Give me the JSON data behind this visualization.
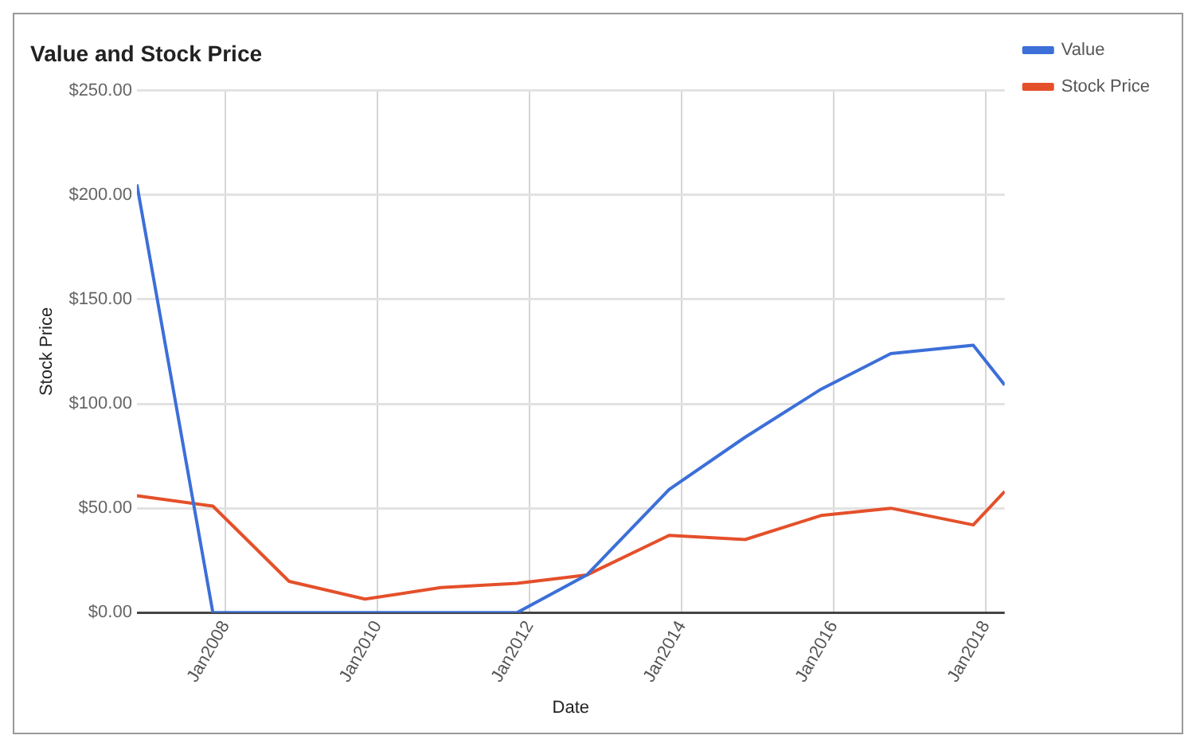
{
  "chart_data": {
    "type": "line",
    "title": "Value and Stock Price",
    "xlabel": "Date",
    "ylabel": "Stock Price",
    "x": [
      "2006-11",
      "2007-11",
      "2008-11",
      "2009-11",
      "2010-11",
      "2011-11",
      "2012-10",
      "2013-11",
      "2014-11",
      "2015-11",
      "2016-10",
      "2017-11",
      "2018-04"
    ],
    "series": [
      {
        "name": "Value",
        "color": "#3c6fd8",
        "values": [
          205,
          0,
          0,
          0,
          0,
          0,
          18,
          59,
          84,
          107,
          124,
          128,
          109
        ]
      },
      {
        "name": "Stock Price",
        "color": "#e4502a",
        "values": [
          56,
          51,
          15,
          6.5,
          12,
          14,
          18,
          37,
          35,
          46.5,
          50,
          42,
          58
        ]
      }
    ],
    "xlim": [
      "2006-11",
      "2018-04"
    ],
    "xticks": [
      {
        "value": "2008-01",
        "label": "Jan2008"
      },
      {
        "value": "2010-01",
        "label": "Jan2010"
      },
      {
        "value": "2012-01",
        "label": "Jan2012"
      },
      {
        "value": "2014-01",
        "label": "Jan2014"
      },
      {
        "value": "2016-01",
        "label": "Jan2016"
      },
      {
        "value": "2018-01",
        "label": "Jan2018"
      }
    ],
    "ylim": [
      0,
      250
    ],
    "yticks": [
      {
        "value": 0,
        "label": "$0.00"
      },
      {
        "value": 50,
        "label": "$50.00"
      },
      {
        "value": 100,
        "label": "$100.00"
      },
      {
        "value": 150,
        "label": "$150.00"
      },
      {
        "value": 200,
        "label": "$200.00"
      },
      {
        "value": 250,
        "label": "$250.00"
      }
    ],
    "grid": true,
    "legend": "top right",
    "marker": "none",
    "line_style": "solid"
  }
}
